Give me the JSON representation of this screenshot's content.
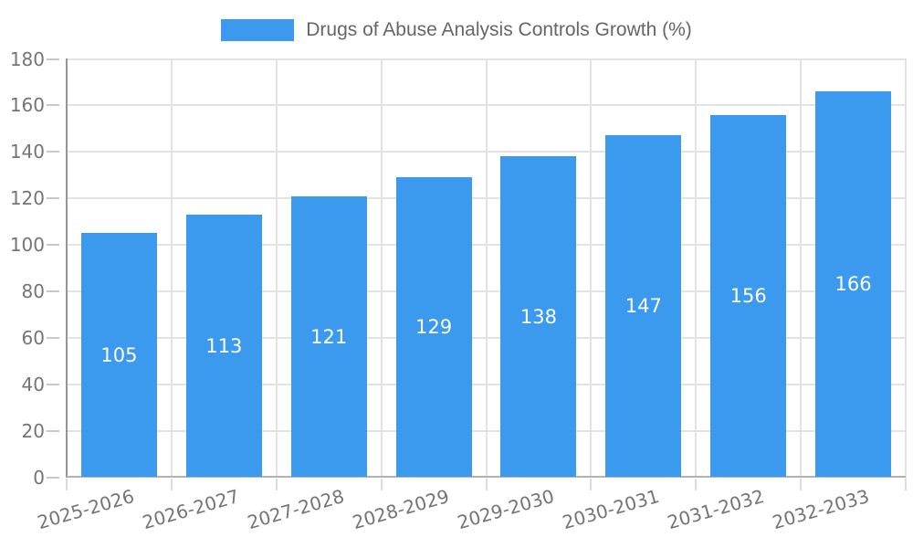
{
  "chart_data": {
    "type": "bar",
    "title": "Drugs of Abuse Analysis Controls Growth (%)",
    "categories": [
      "2025-2026",
      "2026-2027",
      "2027-2028",
      "2028-2029",
      "2029-2030",
      "2030-2031",
      "2031-2032",
      "2032-2033"
    ],
    "values": [
      105,
      113,
      121,
      129,
      138,
      147,
      156,
      166
    ],
    "xlabel": "",
    "ylabel": "",
    "ylim": [
      0,
      180
    ],
    "yticks": [
      0,
      20,
      40,
      60,
      80,
      100,
      120,
      140,
      160,
      180
    ],
    "grid": true,
    "legend_position": "top-center",
    "bar_color": "#3b99ee",
    "value_label_color": "#ffffff",
    "axis_text_color": "#757575",
    "title_color": "#666666",
    "gridline_color": "#e3e3e3"
  },
  "legend": {
    "label": "Drugs of Abuse Analysis Controls Growth (%)",
    "swatch_color": "#3b99ee"
  }
}
